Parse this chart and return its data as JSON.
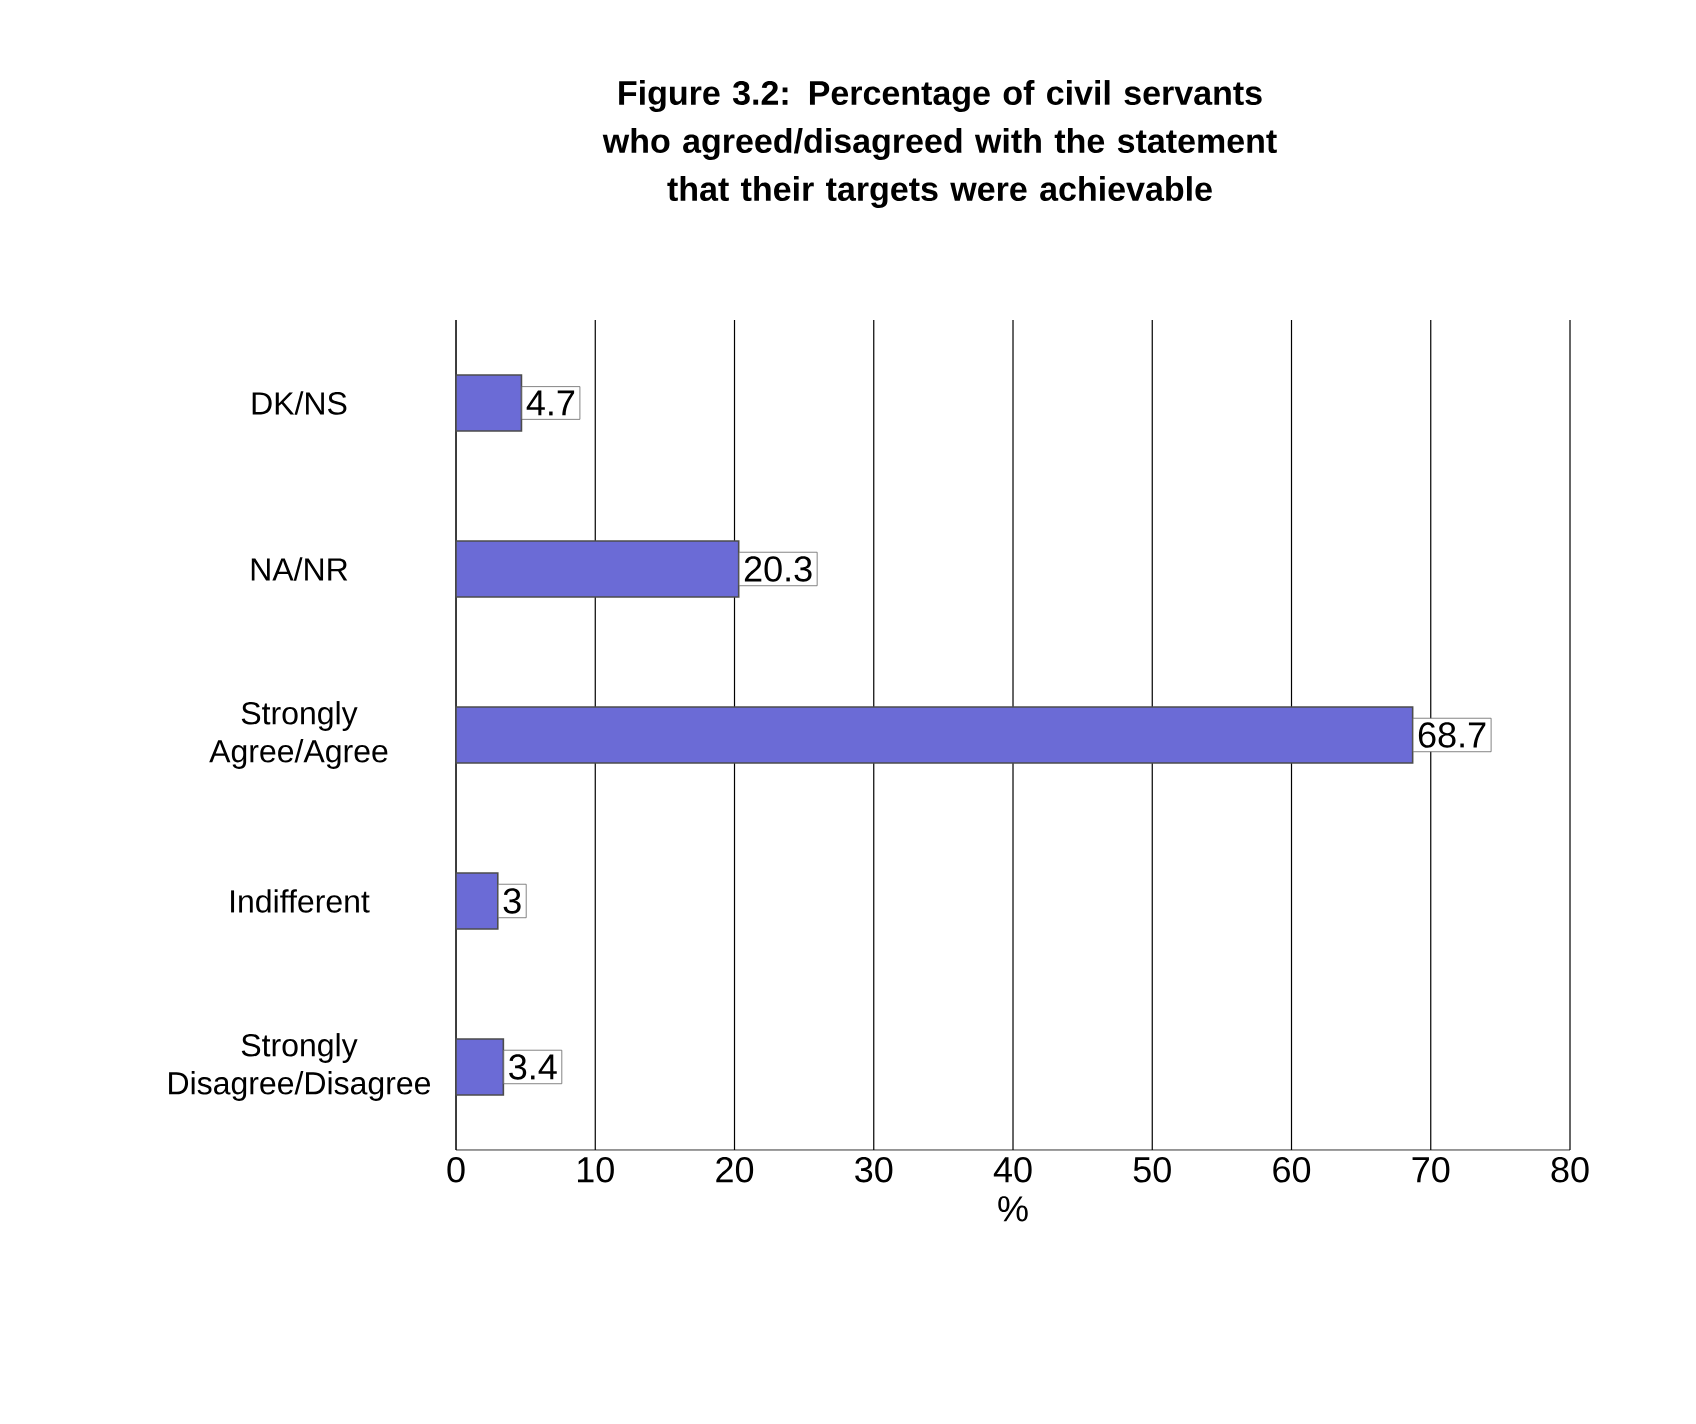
{
  "chart_data": {
    "type": "bar",
    "orientation": "horizontal",
    "title": "Figure 3.2: Percentage of civil servants who agreed/disagreed with the statement that their targets were achievable",
    "categories": [
      "DK/NS",
      "NA/NR",
      "Strongly Agree/Agree",
      "Indifferent",
      "Strongly Disagree/Disagree"
    ],
    "values": [
      4.7,
      20.3,
      68.7,
      3,
      3.4
    ],
    "color": "#6b6bd6",
    "xlabel": "%",
    "xlim": [
      0,
      80
    ],
    "xticks": [
      0,
      10,
      20,
      30,
      40,
      50,
      60,
      70,
      80
    ],
    "grid": "x",
    "data_labels": true
  }
}
